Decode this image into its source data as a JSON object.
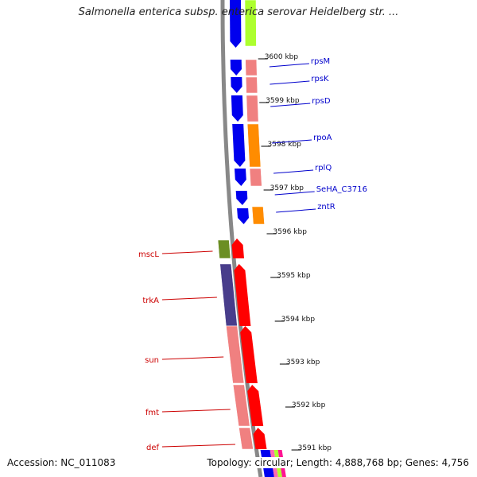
{
  "title": "Salmonella enterica subsp. enterica serovar Heidelberg str. ...",
  "footer": {
    "accession": "Accession: NC_011083",
    "summary": "Topology: circular; Length: 4,888,768 bp; Genes: 4,756"
  },
  "kbp_ticks": [
    "3600 kbp",
    "3599 kbp",
    "3598 kbp",
    "3597 kbp",
    "3596 kbp",
    "3595 kbp",
    "3594 kbp",
    "3593 kbp",
    "3592 kbp",
    "3591 kbp"
  ],
  "genes_right": [
    "rpsM",
    "rpsK",
    "rpsD",
    "rpoA",
    "rplQ",
    "SeHA_C3716",
    "zntR"
  ],
  "genes_left": [
    "mscL",
    "trkA",
    "sun",
    "fmt",
    "def"
  ],
  "colors": {
    "forward_strand": "#0000ee",
    "reverse_strand": "#ff0000",
    "right_label": "#0000cc",
    "left_label": "#cc0000",
    "backbone": "#888888",
    "tick_ring": "#009900",
    "cog_pink": "#f08080",
    "cog_orange": "#ff8c00",
    "cog_lime": "#adff2f",
    "cog_olive": "#6b8e23",
    "cog_purple": "#483d8b"
  }
}
